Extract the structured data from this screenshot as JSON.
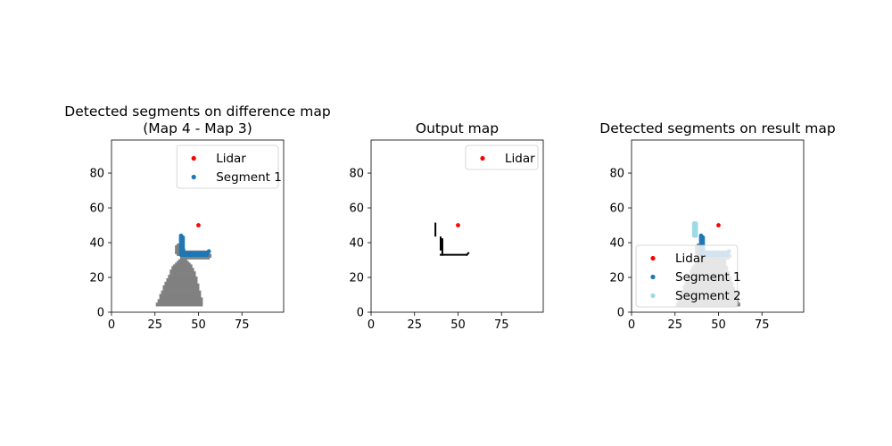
{
  "figure": {
    "background": "#ffffff"
  },
  "colors": {
    "lidar": "#ff0000",
    "segment1": "#1f77b4",
    "segment2": "#9edae5",
    "occupied": "#808080",
    "output": "#000000",
    "axis": "#000000"
  },
  "chart_data": [
    {
      "type": "scatter",
      "title": "Detected segments on difference map\n(Map 4 - Map 3)",
      "xlim": [
        0,
        99
      ],
      "ylim": [
        99,
        0
      ],
      "xticks": [
        0,
        25,
        50,
        75
      ],
      "yticks": [
        0,
        20,
        40,
        60,
        80
      ],
      "legend": {
        "placement": "upper right",
        "entries": [
          "Lidar",
          "Segment 1"
        ]
      },
      "occupancy": {
        "color": "#808080",
        "rows": [
          [
            5,
            26,
            52
          ],
          [
            6,
            26,
            52
          ],
          [
            7,
            27,
            52
          ],
          [
            8,
            27,
            52
          ],
          [
            9,
            28,
            52
          ],
          [
            10,
            28,
            51
          ],
          [
            11,
            28,
            51
          ],
          [
            12,
            29,
            51
          ],
          [
            13,
            29,
            51
          ],
          [
            14,
            30,
            50
          ],
          [
            15,
            30,
            50
          ],
          [
            16,
            30,
            50
          ],
          [
            17,
            31,
            50
          ],
          [
            18,
            31,
            49
          ],
          [
            19,
            32,
            49
          ],
          [
            20,
            32,
            49
          ],
          [
            21,
            33,
            49
          ],
          [
            22,
            33,
            48
          ],
          [
            23,
            34,
            48
          ],
          [
            24,
            34,
            48
          ],
          [
            25,
            34,
            47
          ],
          [
            26,
            35,
            47
          ],
          [
            27,
            35,
            46
          ],
          [
            28,
            36,
            46
          ],
          [
            29,
            37,
            45
          ],
          [
            30,
            38,
            44
          ],
          [
            31,
            39,
            43
          ],
          [
            32,
            40,
            56
          ],
          [
            33,
            40,
            57
          ],
          [
            34,
            38,
            57
          ],
          [
            35,
            37,
            56
          ],
          [
            36,
            37,
            55
          ],
          [
            37,
            37,
            42
          ],
          [
            38,
            37,
            41
          ],
          [
            39,
            37,
            41
          ],
          [
            40,
            38,
            41
          ]
        ]
      },
      "series": [
        {
          "name": "Lidar",
          "color": "#ff0000",
          "points": [
            [
              50,
              50
            ]
          ]
        },
        {
          "name": "Segment 1",
          "color": "#1f77b4",
          "points": [
            [
              40,
              33
            ],
            [
              41,
              33
            ],
            [
              42,
              33
            ],
            [
              43,
              33
            ],
            [
              44,
              33
            ],
            [
              45,
              33
            ],
            [
              46,
              33
            ],
            [
              47,
              33
            ],
            [
              48,
              33
            ],
            [
              49,
              33
            ],
            [
              50,
              33
            ],
            [
              51,
              33
            ],
            [
              52,
              33
            ],
            [
              53,
              33
            ],
            [
              54,
              33
            ],
            [
              55,
              33
            ],
            [
              40,
              34
            ],
            [
              41,
              34
            ],
            [
              42,
              34
            ],
            [
              43,
              34
            ],
            [
              44,
              34
            ],
            [
              45,
              34
            ],
            [
              46,
              34
            ],
            [
              47,
              34
            ],
            [
              48,
              34
            ],
            [
              49,
              34
            ],
            [
              50,
              34
            ],
            [
              51,
              34
            ],
            [
              52,
              34
            ],
            [
              53,
              34
            ],
            [
              54,
              34
            ],
            [
              55,
              34
            ],
            [
              56,
              35
            ],
            [
              40,
              35
            ],
            [
              41,
              35
            ],
            [
              40,
              36
            ],
            [
              41,
              36
            ],
            [
              40,
              37
            ],
            [
              41,
              37
            ],
            [
              40,
              38
            ],
            [
              41,
              38
            ],
            [
              40,
              39
            ],
            [
              41,
              39
            ],
            [
              40,
              40
            ],
            [
              41,
              40
            ],
            [
              40,
              41
            ],
            [
              41,
              41
            ],
            [
              40,
              42
            ],
            [
              41,
              42
            ],
            [
              40,
              43
            ],
            [
              41,
              43
            ],
            [
              40,
              44
            ]
          ]
        }
      ]
    },
    {
      "type": "scatter",
      "title": "Output map",
      "xlim": [
        0,
        99
      ],
      "ylim": [
        99,
        0
      ],
      "xticks": [
        0,
        25,
        50,
        75
      ],
      "yticks": [
        0,
        20,
        40,
        60,
        80
      ],
      "legend": {
        "placement": "upper right",
        "entries": [
          "Lidar"
        ]
      },
      "segments": [
        {
          "color": "#000000",
          "points": [
            [
              40,
              33
            ],
            [
              55,
              33
            ]
          ]
        },
        {
          "color": "#000000",
          "points": [
            [
              55,
              33
            ],
            [
              56,
              34
            ]
          ]
        },
        {
          "color": "#000000",
          "points": [
            [
              41,
              33
            ],
            [
              41,
              42
            ]
          ]
        },
        {
          "color": "#000000",
          "points": [
            [
              40,
              36
            ],
            [
              40,
              43
            ]
          ]
        },
        {
          "color": "#000000",
          "points": [
            [
              37,
              44
            ],
            [
              37,
              51
            ]
          ]
        }
      ],
      "series": [
        {
          "name": "Lidar",
          "color": "#ff0000",
          "points": [
            [
              50,
              50
            ]
          ]
        }
      ]
    },
    {
      "type": "scatter",
      "title": "Detected segments on result map",
      "xlim": [
        0,
        99
      ],
      "ylim": [
        99,
        0
      ],
      "xticks": [
        0,
        25,
        50,
        75
      ],
      "yticks": [
        0,
        20,
        40,
        60,
        80
      ],
      "legend": {
        "placement": "lower left",
        "entries": [
          "Lidar",
          "Segment 1",
          "Segment 2"
        ]
      },
      "occupancy": {
        "color": "#808080",
        "rows": [
          [
            5,
            26,
            62
          ],
          [
            6,
            26,
            62
          ],
          [
            7,
            27,
            61
          ],
          [
            8,
            27,
            61
          ],
          [
            9,
            28,
            61
          ],
          [
            10,
            28,
            60
          ],
          [
            11,
            28,
            60
          ],
          [
            12,
            29,
            60
          ],
          [
            13,
            29,
            59
          ],
          [
            14,
            30,
            59
          ],
          [
            15,
            30,
            59
          ],
          [
            16,
            30,
            58
          ],
          [
            17,
            31,
            58
          ],
          [
            18,
            31,
            58
          ],
          [
            19,
            32,
            57
          ],
          [
            20,
            32,
            57
          ],
          [
            21,
            33,
            57
          ],
          [
            22,
            33,
            56
          ],
          [
            23,
            34,
            56
          ],
          [
            24,
            34,
            56
          ],
          [
            25,
            34,
            55
          ],
          [
            26,
            35,
            55
          ],
          [
            27,
            35,
            55
          ],
          [
            28,
            36,
            54
          ],
          [
            29,
            37,
            54
          ],
          [
            30,
            38,
            54
          ],
          [
            31,
            39,
            54
          ],
          [
            32,
            40,
            56
          ],
          [
            33,
            40,
            57
          ],
          [
            34,
            38,
            57
          ],
          [
            35,
            37,
            56
          ],
          [
            36,
            37,
            55
          ],
          [
            37,
            37,
            42
          ],
          [
            38,
            37,
            41
          ],
          [
            39,
            37,
            41
          ],
          [
            40,
            38,
            41
          ]
        ]
      },
      "series": [
        {
          "name": "Lidar",
          "color": "#ff0000",
          "points": [
            [
              50,
              50
            ]
          ]
        },
        {
          "name": "Segment 1",
          "color": "#1f77b4",
          "points": [
            [
              40,
              33
            ],
            [
              41,
              33
            ],
            [
              42,
              33
            ],
            [
              43,
              33
            ],
            [
              44,
              33
            ],
            [
              45,
              33
            ],
            [
              46,
              33
            ],
            [
              47,
              33
            ],
            [
              48,
              33
            ],
            [
              49,
              33
            ],
            [
              50,
              33
            ],
            [
              51,
              33
            ],
            [
              52,
              33
            ],
            [
              53,
              33
            ],
            [
              54,
              33
            ],
            [
              55,
              33
            ],
            [
              40,
              34
            ],
            [
              41,
              34
            ],
            [
              42,
              34
            ],
            [
              43,
              34
            ],
            [
              44,
              34
            ],
            [
              45,
              34
            ],
            [
              46,
              34
            ],
            [
              47,
              34
            ],
            [
              48,
              34
            ],
            [
              49,
              34
            ],
            [
              50,
              34
            ],
            [
              51,
              34
            ],
            [
              52,
              34
            ],
            [
              53,
              34
            ],
            [
              54,
              34
            ],
            [
              55,
              34
            ],
            [
              56,
              35
            ],
            [
              40,
              35
            ],
            [
              41,
              35
            ],
            [
              40,
              36
            ],
            [
              41,
              36
            ],
            [
              40,
              37
            ],
            [
              41,
              37
            ],
            [
              40,
              38
            ],
            [
              41,
              38
            ],
            [
              40,
              39
            ],
            [
              41,
              39
            ],
            [
              40,
              40
            ],
            [
              41,
              40
            ],
            [
              40,
              41
            ],
            [
              41,
              41
            ],
            [
              40,
              42
            ],
            [
              41,
              42
            ],
            [
              40,
              43
            ],
            [
              41,
              43
            ],
            [
              40,
              44
            ]
          ]
        },
        {
          "name": "Segment 2",
          "color": "#9edae5",
          "points": [
            [
              36,
              44
            ],
            [
              37,
              44
            ],
            [
              36,
              45
            ],
            [
              37,
              45
            ],
            [
              36,
              46
            ],
            [
              37,
              46
            ],
            [
              36,
              47
            ],
            [
              37,
              47
            ],
            [
              36,
              48
            ],
            [
              37,
              48
            ],
            [
              36,
              49
            ],
            [
              37,
              49
            ],
            [
              36,
              50
            ],
            [
              37,
              50
            ],
            [
              36,
              51
            ],
            [
              37,
              51
            ]
          ]
        }
      ]
    }
  ]
}
